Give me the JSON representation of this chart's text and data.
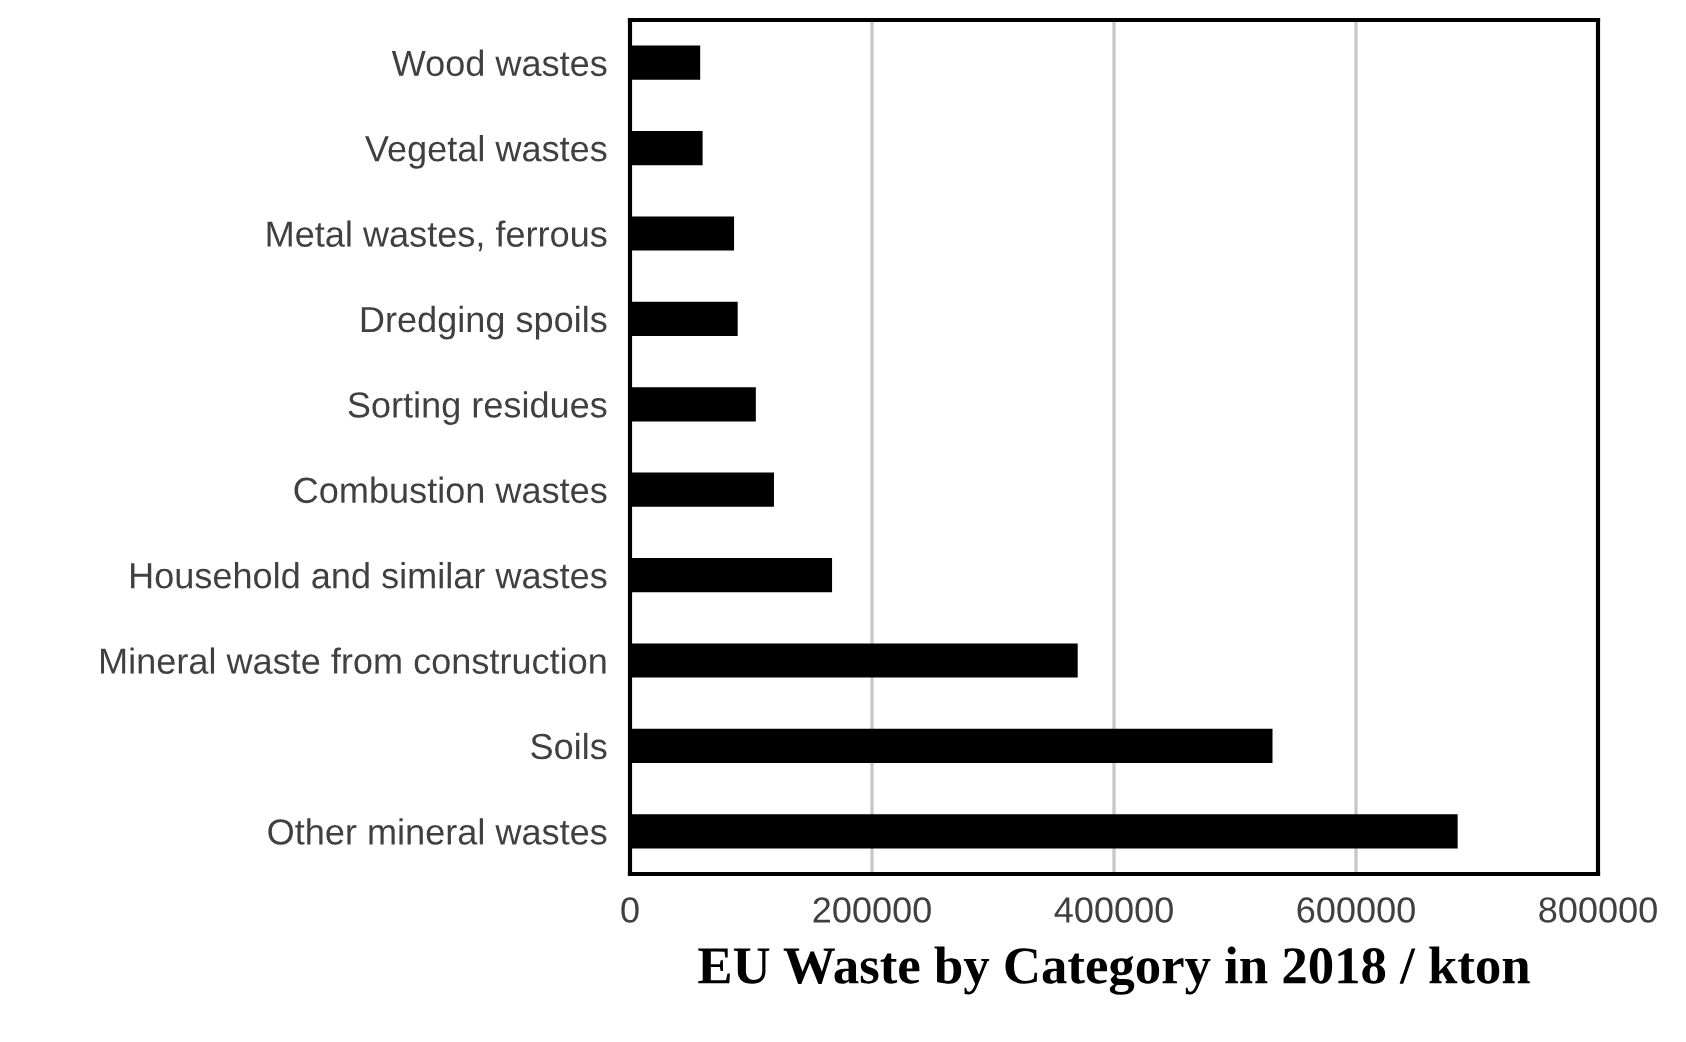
{
  "chart_data": {
    "type": "bar",
    "orientation": "horizontal",
    "title": "EU Waste by Category in 2018 / kton",
    "categories": [
      "Wood wastes",
      "Vegetal wastes",
      "Metal wastes, ferrous",
      "Dredging spoils",
      "Sorting residues",
      "Combustion wastes",
      "Household and similar wastes",
      "Mineral waste from construction",
      "Soils",
      "Other mineral wastes"
    ],
    "values": [
      58000,
      60000,
      86000,
      89000,
      104000,
      119000,
      167000,
      370000,
      531000,
      684000
    ],
    "color": "#000000",
    "xlim": [
      0,
      800000
    ],
    "xticks": [
      0,
      200000,
      400000,
      600000,
      800000
    ],
    "grid": "x"
  }
}
